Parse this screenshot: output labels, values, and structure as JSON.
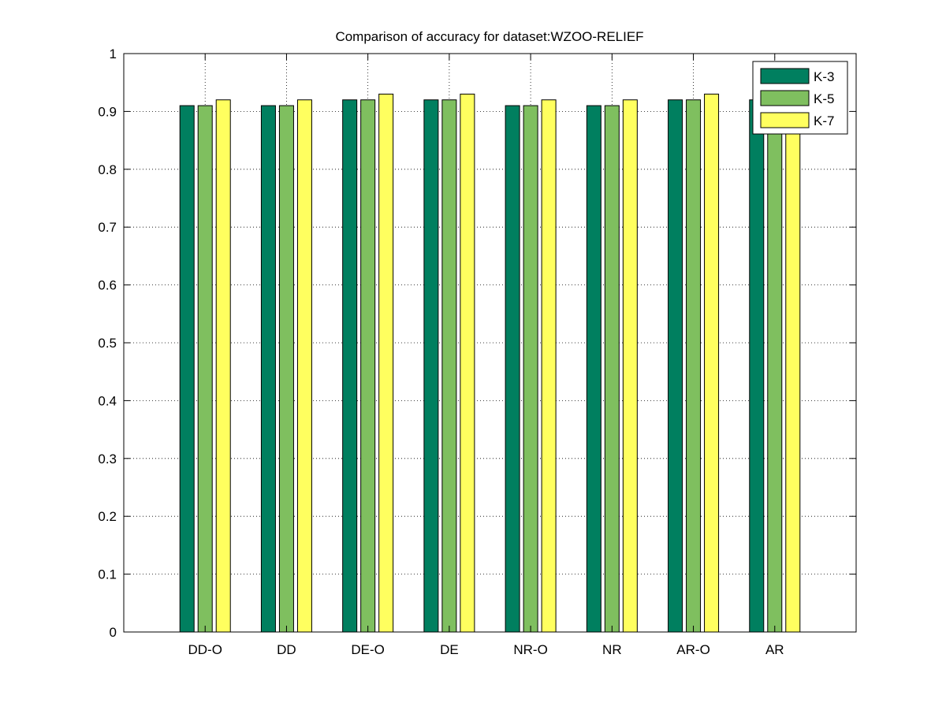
{
  "chart_data": {
    "type": "bar",
    "title": "Comparison of accuracy for dataset:WZOO-RELIEF",
    "xlabel": "",
    "ylabel": "",
    "categories": [
      "DD-O",
      "DD",
      "DE-O",
      "DE",
      "NR-O",
      "NR",
      "AR-O",
      "AR"
    ],
    "series": [
      {
        "name": "K-3",
        "color": "#007f5f",
        "values": [
          0.91,
          0.91,
          0.92,
          0.92,
          0.91,
          0.91,
          0.92,
          0.92
        ]
      },
      {
        "name": "K-5",
        "color": "#7fbf5f",
        "values": [
          0.91,
          0.91,
          0.92,
          0.92,
          0.91,
          0.91,
          0.92,
          0.92
        ]
      },
      {
        "name": "K-7",
        "color": "#ffff5f",
        "values": [
          0.92,
          0.92,
          0.93,
          0.93,
          0.92,
          0.92,
          0.93,
          0.93
        ]
      }
    ],
    "ylim": [
      0,
      1
    ],
    "yticks": [
      "0",
      "0.1",
      "0.2",
      "0.3",
      "0.4",
      "0.5",
      "0.6",
      "0.7",
      "0.8",
      "0.9",
      "1"
    ],
    "grid": true,
    "legend_position": "top-right"
  }
}
